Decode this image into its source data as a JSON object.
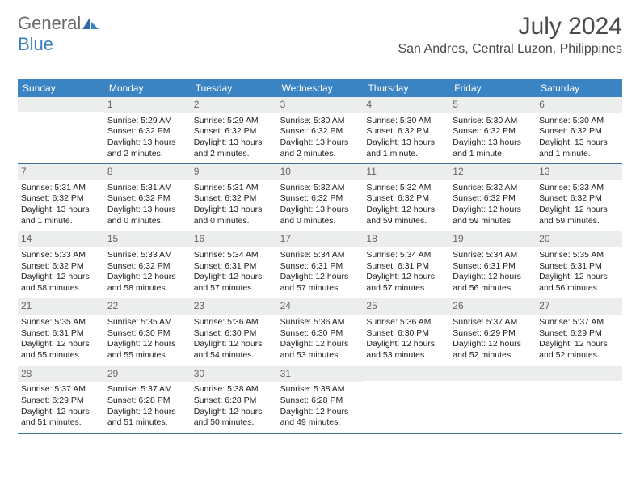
{
  "brand": {
    "part1": "General",
    "part2": "Blue"
  },
  "title": "July 2024",
  "location": "San Andres, Central Luzon, Philippines",
  "weekdays": [
    "Sunday",
    "Monday",
    "Tuesday",
    "Wednesday",
    "Thursday",
    "Friday",
    "Saturday"
  ],
  "header_bg": "#3a84c4",
  "week_border": "#3a6fa0",
  "daynum_bg": "#eceded",
  "weeks": [
    [
      {
        "n": "",
        "lines": []
      },
      {
        "n": "1",
        "lines": [
          "Sunrise: 5:29 AM",
          "Sunset: 6:32 PM",
          "Daylight: 13 hours and 2 minutes."
        ]
      },
      {
        "n": "2",
        "lines": [
          "Sunrise: 5:29 AM",
          "Sunset: 6:32 PM",
          "Daylight: 13 hours and 2 minutes."
        ]
      },
      {
        "n": "3",
        "lines": [
          "Sunrise: 5:30 AM",
          "Sunset: 6:32 PM",
          "Daylight: 13 hours and 2 minutes."
        ]
      },
      {
        "n": "4",
        "lines": [
          "Sunrise: 5:30 AM",
          "Sunset: 6:32 PM",
          "Daylight: 13 hours and 1 minute."
        ]
      },
      {
        "n": "5",
        "lines": [
          "Sunrise: 5:30 AM",
          "Sunset: 6:32 PM",
          "Daylight: 13 hours and 1 minute."
        ]
      },
      {
        "n": "6",
        "lines": [
          "Sunrise: 5:30 AM",
          "Sunset: 6:32 PM",
          "Daylight: 13 hours and 1 minute."
        ]
      }
    ],
    [
      {
        "n": "7",
        "lines": [
          "Sunrise: 5:31 AM",
          "Sunset: 6:32 PM",
          "Daylight: 13 hours and 1 minute."
        ]
      },
      {
        "n": "8",
        "lines": [
          "Sunrise: 5:31 AM",
          "Sunset: 6:32 PM",
          "Daylight: 13 hours and 0 minutes."
        ]
      },
      {
        "n": "9",
        "lines": [
          "Sunrise: 5:31 AM",
          "Sunset: 6:32 PM",
          "Daylight: 13 hours and 0 minutes."
        ]
      },
      {
        "n": "10",
        "lines": [
          "Sunrise: 5:32 AM",
          "Sunset: 6:32 PM",
          "Daylight: 13 hours and 0 minutes."
        ]
      },
      {
        "n": "11",
        "lines": [
          "Sunrise: 5:32 AM",
          "Sunset: 6:32 PM",
          "Daylight: 12 hours and 59 minutes."
        ]
      },
      {
        "n": "12",
        "lines": [
          "Sunrise: 5:32 AM",
          "Sunset: 6:32 PM",
          "Daylight: 12 hours and 59 minutes."
        ]
      },
      {
        "n": "13",
        "lines": [
          "Sunrise: 5:33 AM",
          "Sunset: 6:32 PM",
          "Daylight: 12 hours and 59 minutes."
        ]
      }
    ],
    [
      {
        "n": "14",
        "lines": [
          "Sunrise: 5:33 AM",
          "Sunset: 6:32 PM",
          "Daylight: 12 hours and 58 minutes."
        ]
      },
      {
        "n": "15",
        "lines": [
          "Sunrise: 5:33 AM",
          "Sunset: 6:32 PM",
          "Daylight: 12 hours and 58 minutes."
        ]
      },
      {
        "n": "16",
        "lines": [
          "Sunrise: 5:34 AM",
          "Sunset: 6:31 PM",
          "Daylight: 12 hours and 57 minutes."
        ]
      },
      {
        "n": "17",
        "lines": [
          "Sunrise: 5:34 AM",
          "Sunset: 6:31 PM",
          "Daylight: 12 hours and 57 minutes."
        ]
      },
      {
        "n": "18",
        "lines": [
          "Sunrise: 5:34 AM",
          "Sunset: 6:31 PM",
          "Daylight: 12 hours and 57 minutes."
        ]
      },
      {
        "n": "19",
        "lines": [
          "Sunrise: 5:34 AM",
          "Sunset: 6:31 PM",
          "Daylight: 12 hours and 56 minutes."
        ]
      },
      {
        "n": "20",
        "lines": [
          "Sunrise: 5:35 AM",
          "Sunset: 6:31 PM",
          "Daylight: 12 hours and 56 minutes."
        ]
      }
    ],
    [
      {
        "n": "21",
        "lines": [
          "Sunrise: 5:35 AM",
          "Sunset: 6:31 PM",
          "Daylight: 12 hours and 55 minutes."
        ]
      },
      {
        "n": "22",
        "lines": [
          "Sunrise: 5:35 AM",
          "Sunset: 6:30 PM",
          "Daylight: 12 hours and 55 minutes."
        ]
      },
      {
        "n": "23",
        "lines": [
          "Sunrise: 5:36 AM",
          "Sunset: 6:30 PM",
          "Daylight: 12 hours and 54 minutes."
        ]
      },
      {
        "n": "24",
        "lines": [
          "Sunrise: 5:36 AM",
          "Sunset: 6:30 PM",
          "Daylight: 12 hours and 53 minutes."
        ]
      },
      {
        "n": "25",
        "lines": [
          "Sunrise: 5:36 AM",
          "Sunset: 6:30 PM",
          "Daylight: 12 hours and 53 minutes."
        ]
      },
      {
        "n": "26",
        "lines": [
          "Sunrise: 5:37 AM",
          "Sunset: 6:29 PM",
          "Daylight: 12 hours and 52 minutes."
        ]
      },
      {
        "n": "27",
        "lines": [
          "Sunrise: 5:37 AM",
          "Sunset: 6:29 PM",
          "Daylight: 12 hours and 52 minutes."
        ]
      }
    ],
    [
      {
        "n": "28",
        "lines": [
          "Sunrise: 5:37 AM",
          "Sunset: 6:29 PM",
          "Daylight: 12 hours and 51 minutes."
        ]
      },
      {
        "n": "29",
        "lines": [
          "Sunrise: 5:37 AM",
          "Sunset: 6:28 PM",
          "Daylight: 12 hours and 51 minutes."
        ]
      },
      {
        "n": "30",
        "lines": [
          "Sunrise: 5:38 AM",
          "Sunset: 6:28 PM",
          "Daylight: 12 hours and 50 minutes."
        ]
      },
      {
        "n": "31",
        "lines": [
          "Sunrise: 5:38 AM",
          "Sunset: 6:28 PM",
          "Daylight: 12 hours and 49 minutes."
        ]
      },
      {
        "n": "",
        "lines": []
      },
      {
        "n": "",
        "lines": []
      },
      {
        "n": "",
        "lines": []
      }
    ]
  ]
}
